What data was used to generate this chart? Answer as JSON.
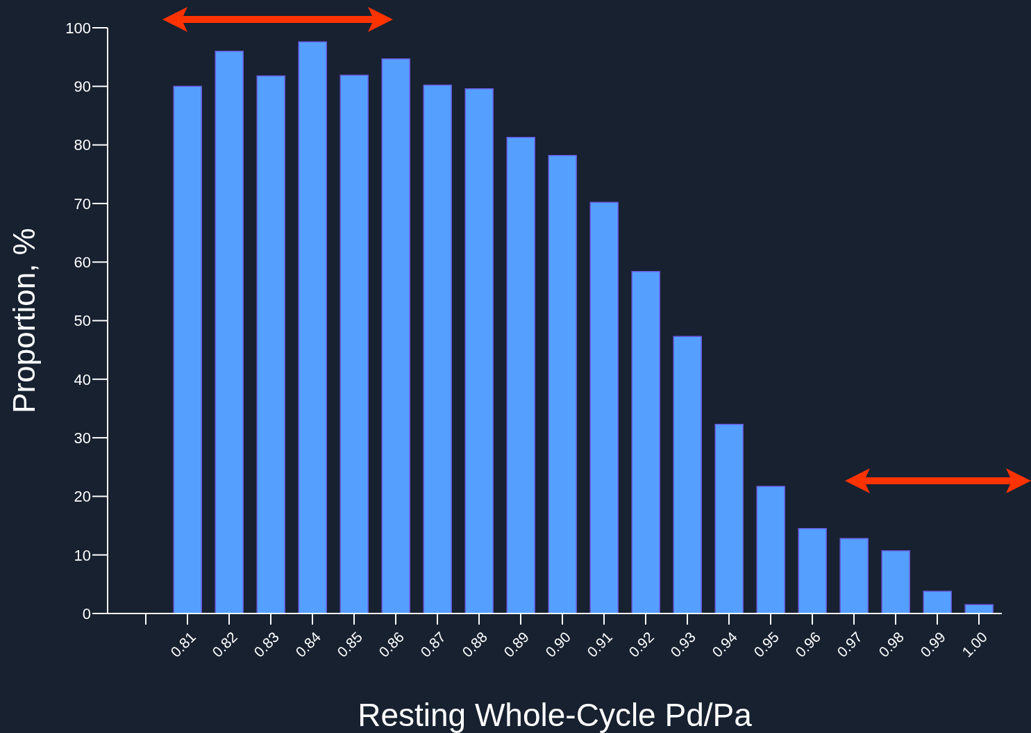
{
  "chart_data": {
    "type": "bar",
    "xlabel": "Resting Whole-Cycle Pd/Pa",
    "ylabel": "Proportion, %",
    "categories": [
      null,
      "0.81",
      "0.82",
      "0.83",
      "0.84",
      "0.85",
      "0.86",
      "0.87",
      "0.88",
      "0.89",
      "0.90",
      "0.91",
      "0.92",
      "0.93",
      "0.94",
      "0.95",
      "0.96",
      "0.97",
      "0.98",
      "0.99",
      "1.00"
    ],
    "values": [
      null,
      90,
      96,
      91.8,
      97.6,
      91.9,
      94.7,
      90.2,
      89.6,
      81.3,
      78.2,
      70.2,
      58.4,
      47.3,
      32.3,
      21.7,
      14.5,
      12.8,
      10.7,
      3.8,
      1.5
    ],
    "color": "#55a0ff",
    "ylim": [
      0,
      100
    ],
    "yticks": [
      0,
      10,
      20,
      30,
      40,
      50,
      60,
      70,
      80,
      90,
      100
    ],
    "grid": false,
    "legend": false
  }
}
